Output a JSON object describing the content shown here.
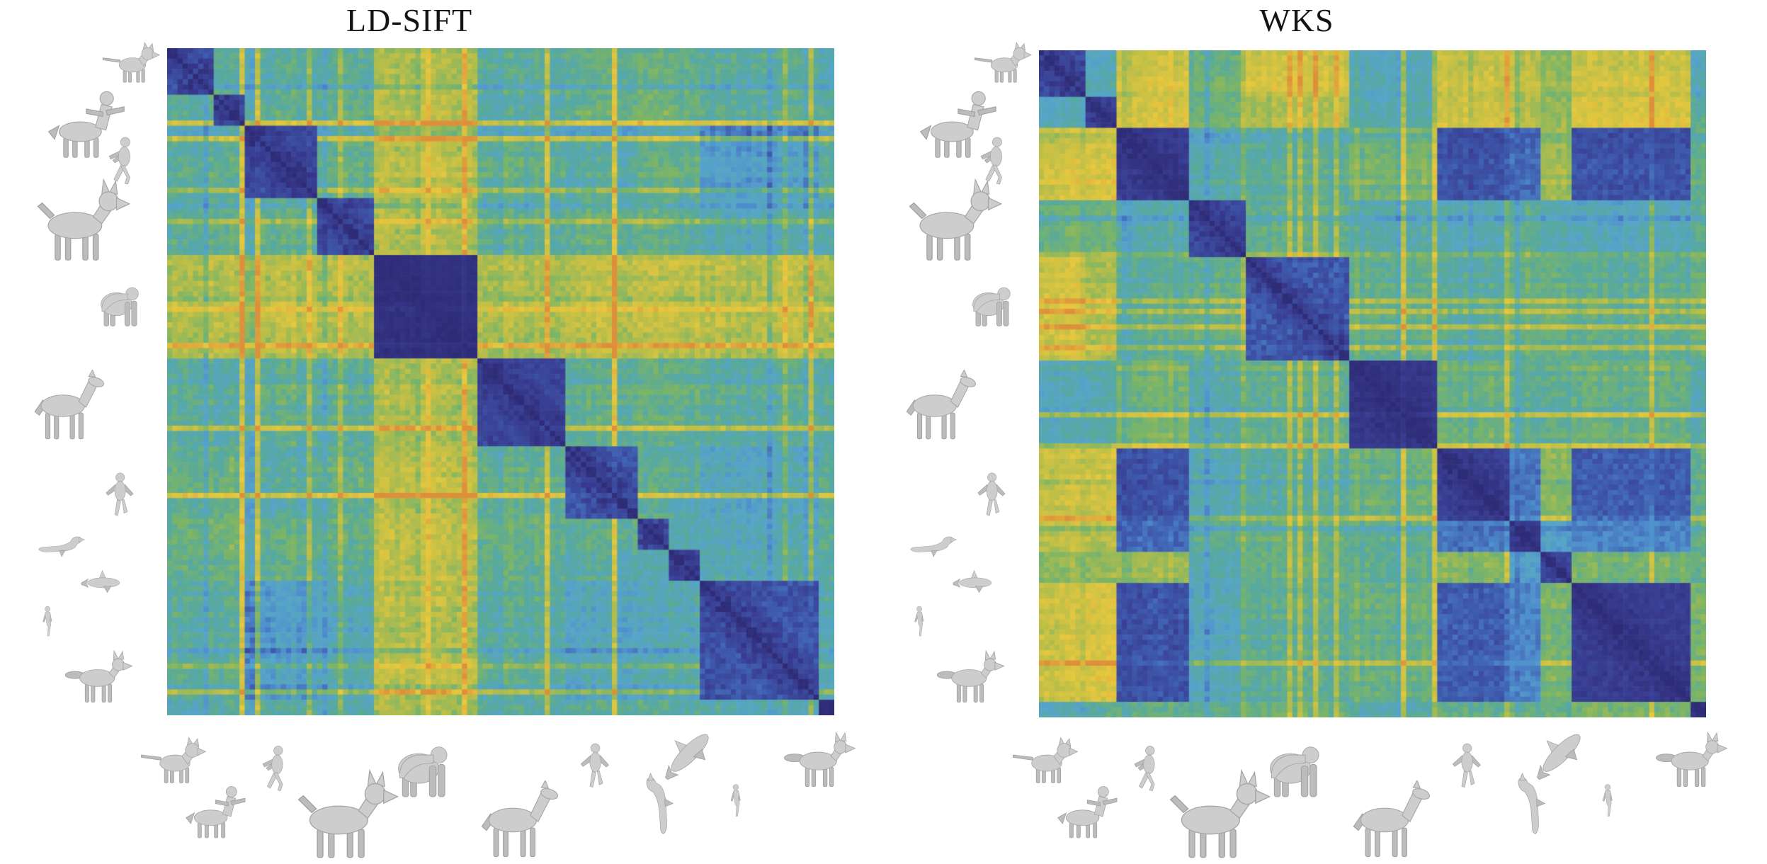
{
  "panels": [
    {
      "title": "LD-SIFT"
    },
    {
      "title": "WKS"
    }
  ],
  "classes": [
    {
      "name": "cat",
      "icon": "cat-icon",
      "count": 9
    },
    {
      "name": "centaur",
      "icon": "centaur-icon",
      "count": 6
    },
    {
      "name": "man-running",
      "icon": "man-running-icon",
      "count": 14
    },
    {
      "name": "dog",
      "icon": "dog-icon",
      "count": 11
    },
    {
      "name": "gorilla",
      "icon": "gorilla-icon",
      "count": 20
    },
    {
      "name": "horse",
      "icon": "horse-icon",
      "count": 17
    },
    {
      "name": "man-floating",
      "icon": "man-floating-icon",
      "count": 14
    },
    {
      "name": "seahorse",
      "icon": "seahorse-icon",
      "count": 6
    },
    {
      "name": "shark",
      "icon": "shark-icon",
      "count": 6
    },
    {
      "name": "woman",
      "icon": "woman-icon",
      "count": 23
    },
    {
      "name": "wolf",
      "icon": "wolf-icon",
      "count": 3
    }
  ],
  "side_gallery": [
    "cat",
    "centaur",
    "man-running",
    "dog",
    "gorilla",
    "horse",
    "man-floating",
    "seahorse",
    "shark",
    "woman",
    "wolf"
  ],
  "bottom_gallery": [
    "cat",
    "centaur",
    "man-running",
    "dog",
    "gorilla",
    "horse",
    "man-floating",
    "seahorse",
    "shark",
    "woman",
    "wolf"
  ],
  "colors": {
    "background": "#ffffff",
    "title_text": "#141414",
    "thumbnail_fill": "#cdcdcd",
    "thumbnail_stroke": "#a6a6a6",
    "colormap_stops": [
      [
        0.0,
        "#2e2c76"
      ],
      [
        0.06,
        "#383a8e"
      ],
      [
        0.18,
        "#3f5cae"
      ],
      [
        0.3,
        "#4f8fcd"
      ],
      [
        0.4,
        "#57a5c8"
      ],
      [
        0.5,
        "#57a99e"
      ],
      [
        0.62,
        "#7cb565"
      ],
      [
        0.74,
        "#bcbe48"
      ],
      [
        0.86,
        "#e7c83e"
      ],
      [
        1.0,
        "#dd8f3a"
      ]
    ]
  },
  "chart_data": [
    {
      "type": "heatmap",
      "title": "LD-SIFT",
      "description": "Pairwise shape dissimilarity matrix for the LD-SIFT descriptor; shapes block-sorted by class; blue = similar (low distance), yellow/orange = dissimilar (high distance); dark diagonal = self-distance 0.",
      "categories": [
        "cat",
        "centaur",
        "man-running",
        "dog",
        "gorilla",
        "horse",
        "man-floating",
        "seahorse",
        "shark",
        "woman",
        "wolf"
      ],
      "class_sizes": [
        9,
        6,
        14,
        11,
        20,
        17,
        14,
        6,
        6,
        23,
        3
      ],
      "n": 129,
      "value_range": [
        0,
        1
      ],
      "legend": "none",
      "grid": false,
      "colormap": "parula-like",
      "block_means": [
        [
          0.14,
          0.52,
          0.52,
          0.52,
          0.72,
          0.52,
          0.55,
          0.6,
          0.55,
          0.5,
          0.46
        ],
        [
          0.52,
          0.12,
          0.55,
          0.55,
          0.75,
          0.5,
          0.58,
          0.64,
          0.58,
          0.52,
          0.52
        ],
        [
          0.52,
          0.55,
          0.1,
          0.55,
          0.75,
          0.55,
          0.5,
          0.58,
          0.55,
          0.37,
          0.52
        ],
        [
          0.52,
          0.55,
          0.55,
          0.12,
          0.72,
          0.52,
          0.55,
          0.58,
          0.52,
          0.44,
          0.48
        ],
        [
          0.72,
          0.75,
          0.75,
          0.72,
          0.02,
          0.72,
          0.75,
          0.78,
          0.75,
          0.72,
          0.7
        ],
        [
          0.52,
          0.5,
          0.55,
          0.52,
          0.72,
          0.09,
          0.55,
          0.58,
          0.55,
          0.5,
          0.5
        ],
        [
          0.55,
          0.58,
          0.5,
          0.55,
          0.75,
          0.55,
          0.13,
          0.55,
          0.5,
          0.42,
          0.52
        ],
        [
          0.6,
          0.64,
          0.58,
          0.58,
          0.78,
          0.58,
          0.55,
          0.14,
          0.48,
          0.45,
          0.55
        ],
        [
          0.55,
          0.58,
          0.55,
          0.52,
          0.75,
          0.55,
          0.5,
          0.48,
          0.11,
          0.45,
          0.5
        ],
        [
          0.5,
          0.52,
          0.37,
          0.44,
          0.72,
          0.5,
          0.42,
          0.45,
          0.45,
          0.13,
          0.45
        ],
        [
          0.46,
          0.52,
          0.52,
          0.48,
          0.7,
          0.5,
          0.52,
          0.55,
          0.5,
          0.45,
          0.03
        ]
      ],
      "texture": {
        "seed": 1337,
        "cell_noise": 0.12,
        "streak_prob": 0.14,
        "streak_hi": 0.34,
        "streak_lo": -0.14,
        "in_block_damp": 0.25
      }
    },
    {
      "type": "heatmap",
      "title": "WKS",
      "description": "Pairwise shape dissimilarity matrix for the WKS descriptor; human classes (man-running, man-floating, woman) are mutually confused (blue off-diagonal blocks); cat/centaur columns vs humans are orange (high distance).",
      "categories": [
        "cat",
        "centaur",
        "man-running",
        "dog",
        "gorilla",
        "horse",
        "man-floating",
        "seahorse",
        "shark",
        "woman",
        "wolf"
      ],
      "class_sizes": [
        9,
        6,
        14,
        11,
        20,
        17,
        14,
        6,
        6,
        23,
        3
      ],
      "n": 129,
      "value_range": [
        0,
        1
      ],
      "legend": "none",
      "grid": false,
      "colormap": "parula-like",
      "block_means": [
        [
          0.11,
          0.45,
          0.8,
          0.55,
          0.78,
          0.46,
          0.78,
          0.75,
          0.65,
          0.78,
          0.42
        ],
        [
          0.45,
          0.1,
          0.84,
          0.58,
          0.72,
          0.5,
          0.82,
          0.75,
          0.68,
          0.84,
          0.52
        ],
        [
          0.8,
          0.84,
          0.06,
          0.46,
          0.52,
          0.63,
          0.15,
          0.22,
          0.7,
          0.15,
          0.55
        ],
        [
          0.55,
          0.58,
          0.46,
          0.11,
          0.52,
          0.48,
          0.45,
          0.5,
          0.45,
          0.42,
          0.5
        ],
        [
          0.78,
          0.72,
          0.52,
          0.52,
          0.14,
          0.55,
          0.5,
          0.55,
          0.55,
          0.52,
          0.55
        ],
        [
          0.46,
          0.5,
          0.63,
          0.48,
          0.55,
          0.04,
          0.6,
          0.55,
          0.55,
          0.58,
          0.48
        ],
        [
          0.78,
          0.82,
          0.15,
          0.45,
          0.5,
          0.6,
          0.07,
          0.25,
          0.65,
          0.18,
          0.55
        ],
        [
          0.75,
          0.75,
          0.22,
          0.5,
          0.55,
          0.55,
          0.25,
          0.1,
          0.38,
          0.28,
          0.55
        ],
        [
          0.65,
          0.68,
          0.7,
          0.45,
          0.55,
          0.55,
          0.65,
          0.38,
          0.11,
          0.6,
          0.55
        ],
        [
          0.78,
          0.84,
          0.15,
          0.42,
          0.52,
          0.58,
          0.18,
          0.28,
          0.6,
          0.06,
          0.6
        ],
        [
          0.42,
          0.52,
          0.55,
          0.5,
          0.55,
          0.48,
          0.55,
          0.55,
          0.55,
          0.6,
          0.04
        ]
      ],
      "texture": {
        "seed": 4242,
        "cell_noise": 0.1,
        "streak_prob": 0.06,
        "streak_hi": 0.22,
        "streak_lo": -0.12,
        "in_block_damp": 0.25
      }
    }
  ]
}
